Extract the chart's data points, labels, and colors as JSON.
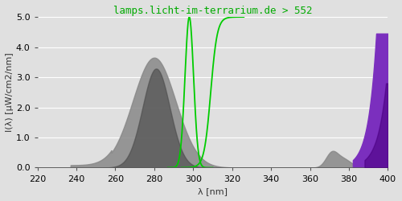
{
  "title": "lamps.licht-im-terrarium.de > 552",
  "xlabel": "λ [nm]",
  "ylabel": "I(λ) [µW/cm2/nm]",
  "xlim": [
    220,
    400
  ],
  "ylim": [
    0,
    5.0
  ],
  "yticks": [
    0.0,
    1.0,
    2.0,
    3.0,
    4.0,
    5.0
  ],
  "xticks": [
    220,
    240,
    260,
    280,
    300,
    320,
    340,
    360,
    380,
    400
  ],
  "background_color": "#e0e0e0",
  "axes_face_color": "#e0e0e0",
  "title_color": "#00aa00",
  "title_fontsize": 9,
  "label_fontsize": 8,
  "tick_fontsize": 8,
  "gray_color": "#888888",
  "dark_gray_color": "#505050",
  "purple_color": "#7B2FBE",
  "dark_purple_color": "#4B0082",
  "green_color": "#00cc00"
}
